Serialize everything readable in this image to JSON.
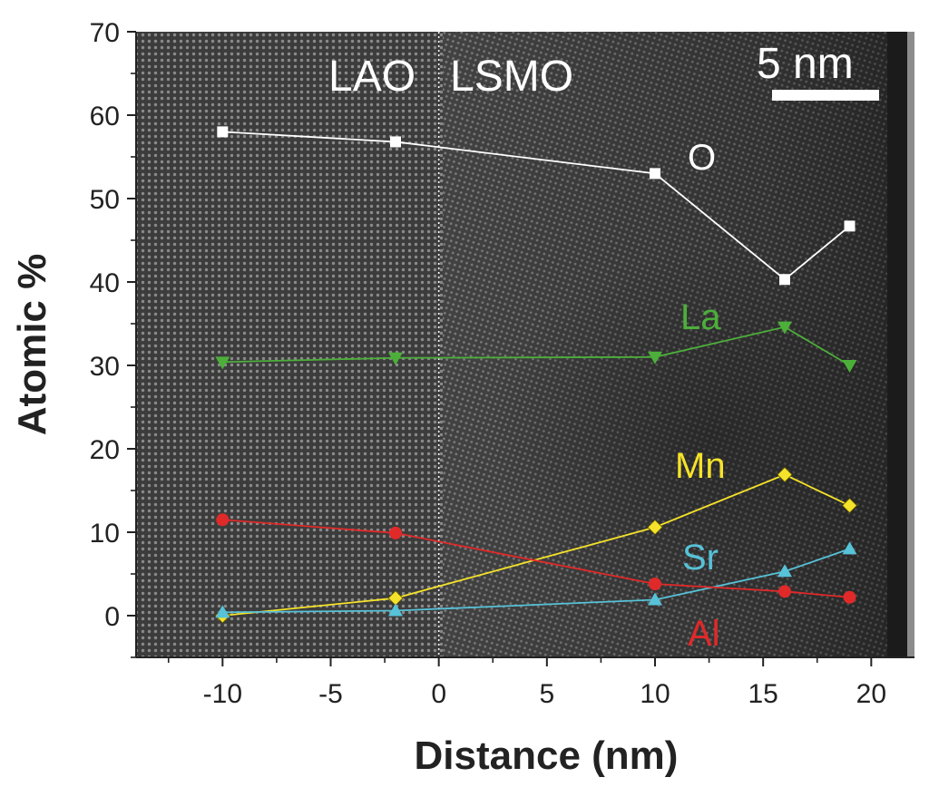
{
  "chart_data": {
    "type": "line",
    "xlabel": "Distance (nm)",
    "ylabel": "Atomic %",
    "xlim": [
      -14,
      22
    ],
    "ylim": [
      -5,
      70
    ],
    "xticks": [
      -10,
      -5,
      0,
      5,
      10,
      15,
      20
    ],
    "yticks": [
      0,
      10,
      20,
      30,
      40,
      50,
      60,
      70
    ],
    "interface_x": 0,
    "region_labels": [
      "LAO",
      "LSMO"
    ],
    "scale_bar_label": "5 nm",
    "series": [
      {
        "name": "O",
        "color": "#ffffff",
        "marker": "square",
        "x": [
          -10,
          -2,
          10,
          16,
          19
        ],
        "values": [
          58.0,
          56.8,
          53.0,
          40.3,
          46.7
        ]
      },
      {
        "name": "La",
        "color": "#4caf3a",
        "marker": "tri-down",
        "x": [
          -10,
          -2,
          10,
          16,
          19
        ],
        "values": [
          30.4,
          30.9,
          31.0,
          34.6,
          30.0
        ]
      },
      {
        "name": "Mn",
        "color": "#f5e22a",
        "marker": "diamond",
        "x": [
          -10,
          -2,
          10,
          16,
          19
        ],
        "values": [
          0.0,
          2.1,
          10.6,
          16.9,
          13.2
        ]
      },
      {
        "name": "Sr",
        "color": "#57c2d8",
        "marker": "tri-up",
        "x": [
          -10,
          -2,
          10,
          16,
          19
        ],
        "values": [
          0.4,
          0.6,
          1.9,
          5.3,
          8.0
        ]
      },
      {
        "name": "Al",
        "color": "#e02929",
        "marker": "circle",
        "x": [
          -10,
          -2,
          10,
          16,
          19
        ],
        "values": [
          11.5,
          9.9,
          3.8,
          2.9,
          2.2
        ]
      }
    ]
  }
}
